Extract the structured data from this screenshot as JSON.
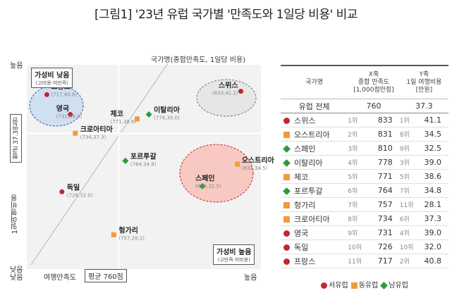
{
  "title": "[그림1] '23년 유럽 국가별 '만족도와 1일당 비용' 비교",
  "colors": {
    "서유럽": "#c0282f",
    "동유럽": "#f19b38",
    "남유럽": "#2d9a3e"
  },
  "plot_labels": {
    "y_high": "높음",
    "y_low": "낮음",
    "x_low": "낮음",
    "x_high": "높음",
    "x_axis": "여행만족도",
    "y_axis": "1일여행비용",
    "name_key": "국가명(종합만족도, 1일당 비용)",
    "avg_x": "평균 760점",
    "avg_y": "평균 37.3만원",
    "low_value_title": "가성비 낮음",
    "low_value_sub": "(고비용·저만족)",
    "high_value_title": "가성비 높음",
    "high_value_sub": "(고만족·저비용)"
  },
  "table": {
    "col_country": "국가명",
    "col_x": [
      "X축",
      "종합 만족도",
      "[1,000점만점]"
    ],
    "col_y": [
      "Y축",
      "1일 여행비용",
      "[만원]"
    ],
    "total": {
      "label": "유럽 전체",
      "x": "760",
      "y": "37.3"
    },
    "rows": [
      {
        "name": "스위스",
        "region": "서유럽",
        "xr": "1위",
        "x": "833",
        "yr": "1위",
        "y": "41.1"
      },
      {
        "name": "오스트리아",
        "region": "동유럽",
        "xr": "2위",
        "x": "831",
        "yr": "8위",
        "y": "34.5"
      },
      {
        "name": "스페인",
        "region": "남유럽",
        "xr": "3위",
        "x": "810",
        "yr": "9위",
        "y": "32.5"
      },
      {
        "name": "이탈리아",
        "region": "남유럽",
        "xr": "4위",
        "x": "778",
        "yr": "3위",
        "y": "39.0"
      },
      {
        "name": "체코",
        "region": "동유럽",
        "xr": "5위",
        "x": "771",
        "yr": "5위",
        "y": "38.6"
      },
      {
        "name": "포르투갈",
        "region": "남유럽",
        "xr": "6위",
        "x": "764",
        "yr": "7위",
        "y": "34.8"
      },
      {
        "name": "헝가리",
        "region": "동유럽",
        "xr": "7위",
        "x": "757",
        "yr": "11위",
        "y": "28.1"
      },
      {
        "name": "크로아티아",
        "region": "동유럽",
        "xr": "8위",
        "x": "734",
        "yr": "6위",
        "y": "37.3"
      },
      {
        "name": "영국",
        "region": "서유럽",
        "xr": "9위",
        "x": "731",
        "yr": "4위",
        "y": "39.0"
      },
      {
        "name": "독일",
        "region": "서유럽",
        "xr": "10위",
        "x": "726",
        "yr": "10위",
        "y": "32.0"
      },
      {
        "name": "프랑스",
        "region": "서유럽",
        "xr": "11위",
        "x": "717",
        "yr": "2위",
        "y": "40.8"
      }
    ]
  },
  "legend": [
    {
      "label": "서유럽",
      "marker": "circle"
    },
    {
      "label": "동유럽",
      "marker": "square"
    },
    {
      "label": "남유럽",
      "marker": "diamond"
    }
  ],
  "chart_data": {
    "type": "scatter",
    "title": "'23년 유럽 국가별 '만족도와 1일당 비용' 비교",
    "xlabel": "여행만족도",
    "ylabel": "1일여행비용",
    "x_reference": 760,
    "y_reference": 37.3,
    "grid": false,
    "legend_position": "bottom",
    "series": [
      {
        "name": "서유럽",
        "marker": "circle",
        "points": [
          {
            "label": "스위스",
            "x": 833,
            "y": 41.1
          },
          {
            "label": "영국",
            "x": 731,
            "y": 39.0
          },
          {
            "label": "독일",
            "x": 726,
            "y": 32.0
          },
          {
            "label": "프랑스",
            "x": 717,
            "y": 40.8
          }
        ]
      },
      {
        "name": "동유럽",
        "marker": "square",
        "points": [
          {
            "label": "오스트리아",
            "x": 831,
            "y": 34.5
          },
          {
            "label": "체코",
            "x": 771,
            "y": 38.6
          },
          {
            "label": "헝가리",
            "x": 757,
            "y": 28.1
          },
          {
            "label": "크로아티아",
            "x": 734,
            "y": 37.3
          }
        ]
      },
      {
        "name": "남유럽",
        "marker": "diamond",
        "points": [
          {
            "label": "스페인",
            "x": 810,
            "y": 32.5
          },
          {
            "label": "이탈리아",
            "x": 778,
            "y": 39.0
          },
          {
            "label": "포르투갈",
            "x": 764,
            "y": 34.8
          }
        ]
      }
    ]
  }
}
